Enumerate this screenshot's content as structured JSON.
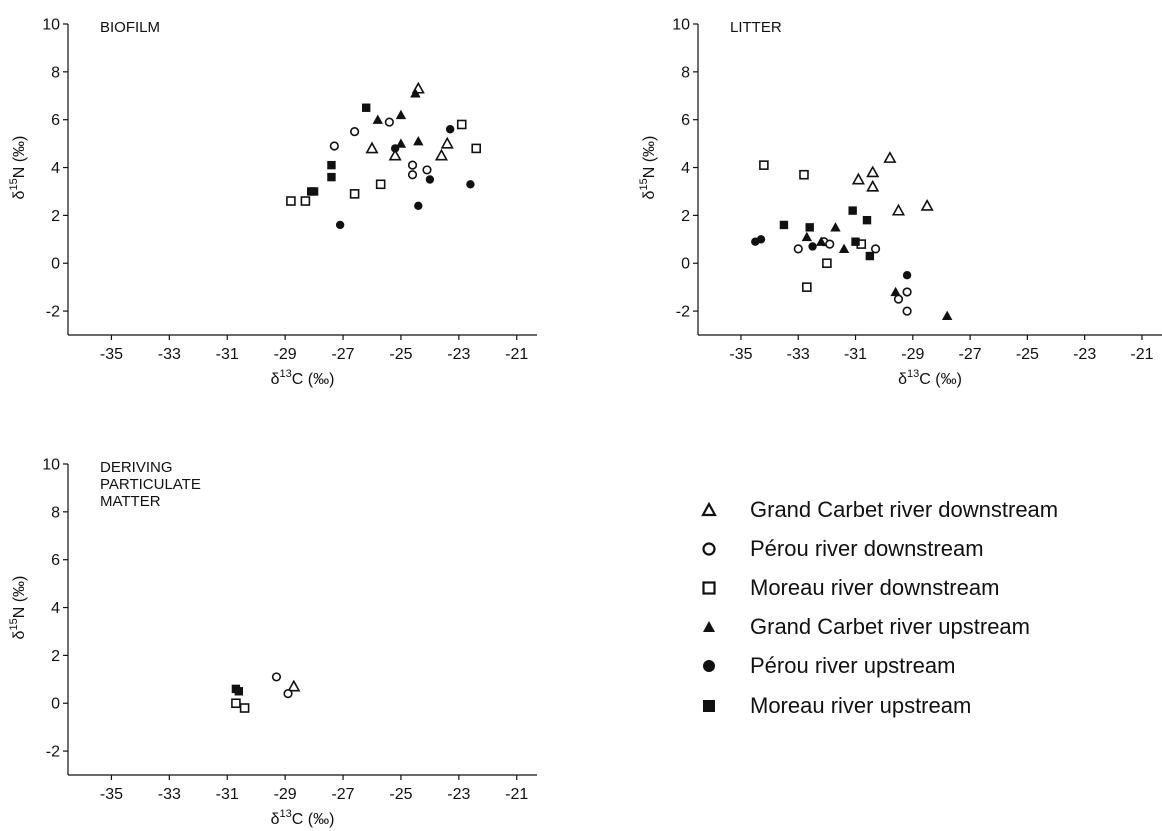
{
  "chart_data": [
    {
      "type": "scatter",
      "title": "BIOFILM",
      "xlabel": {
        "pre": "δ",
        "sup": "13",
        "post": "C (‰)"
      },
      "ylabel": {
        "pre": "δ",
        "sup": "15",
        "post": "N (‰)"
      },
      "xlim": [
        -36.5,
        -20.3
      ],
      "ylim": [
        -3,
        10
      ],
      "xticks": [
        -35,
        -33,
        -31,
        -29,
        -27,
        -25,
        -23,
        -21
      ],
      "yticks": [
        -2,
        0,
        2,
        4,
        6,
        8,
        10
      ],
      "series": [
        {
          "name": "Grand Carbet river downstream",
          "marker": "triangle-open",
          "points": [
            [
              -26.0,
              4.8
            ],
            [
              -25.2,
              4.5
            ],
            [
              -24.4,
              7.3
            ],
            [
              -23.6,
              4.5
            ],
            [
              -23.4,
              5.0
            ]
          ]
        },
        {
          "name": "Pérou river downstream",
          "marker": "circle-open",
          "points": [
            [
              -27.3,
              4.9
            ],
            [
              -26.6,
              5.5
            ],
            [
              -25.4,
              5.9
            ],
            [
              -24.6,
              4.1
            ],
            [
              -24.6,
              3.7
            ],
            [
              -24.1,
              3.9
            ]
          ]
        },
        {
          "name": "Moreau river downstream",
          "marker": "square-open",
          "points": [
            [
              -28.8,
              2.6
            ],
            [
              -28.3,
              2.6
            ],
            [
              -26.6,
              2.9
            ],
            [
              -25.7,
              3.3
            ],
            [
              -22.9,
              5.8
            ],
            [
              -22.4,
              4.8
            ]
          ]
        },
        {
          "name": "Grand Carbet river upstream",
          "marker": "triangle-filled",
          "points": [
            [
              -25.8,
              6.0
            ],
            [
              -25.0,
              6.2
            ],
            [
              -25.0,
              5.0
            ],
            [
              -24.5,
              7.1
            ],
            [
              -24.4,
              5.1
            ]
          ]
        },
        {
          "name": "Pérou river upstream",
          "marker": "circle-filled",
          "points": [
            [
              -27.1,
              1.6
            ],
            [
              -25.2,
              4.8
            ],
            [
              -24.4,
              2.4
            ],
            [
              -24.0,
              3.5
            ],
            [
              -23.3,
              5.6
            ],
            [
              -22.6,
              3.3
            ]
          ]
        },
        {
          "name": "Moreau river upstream",
          "marker": "square-filled",
          "points": [
            [
              -28.1,
              3.0
            ],
            [
              -28.0,
              3.0
            ],
            [
              -27.4,
              4.1
            ],
            [
              -27.4,
              3.6
            ],
            [
              -26.2,
              6.5
            ]
          ]
        }
      ]
    },
    {
      "type": "scatter",
      "title": "LITTER",
      "xlabel": {
        "pre": "δ",
        "sup": "13",
        "post": "C (‰)"
      },
      "ylabel": {
        "pre": "δ",
        "sup": "15",
        "post": "N (‰)"
      },
      "xlim": [
        -36.5,
        -20.3
      ],
      "ylim": [
        -3,
        10
      ],
      "xticks": [
        -35,
        -33,
        -31,
        -29,
        -27,
        -25,
        -23,
        -21
      ],
      "yticks": [
        -2,
        0,
        2,
        4,
        6,
        8,
        10
      ],
      "series": [
        {
          "name": "Grand Carbet river downstream",
          "marker": "triangle-open",
          "points": [
            [
              -30.9,
              3.5
            ],
            [
              -30.4,
              3.2
            ],
            [
              -30.4,
              3.8
            ],
            [
              -29.8,
              4.4
            ],
            [
              -29.5,
              2.2
            ],
            [
              -28.5,
              2.4
            ]
          ]
        },
        {
          "name": "Pérou river downstream",
          "marker": "circle-open",
          "points": [
            [
              -33.0,
              0.6
            ],
            [
              -32.1,
              0.9
            ],
            [
              -31.9,
              0.8
            ],
            [
              -30.3,
              0.6
            ],
            [
              -29.5,
              -1.5
            ],
            [
              -29.2,
              -1.2
            ],
            [
              -29.2,
              -2.0
            ]
          ]
        },
        {
          "name": "Moreau river downstream",
          "marker": "square-open",
          "points": [
            [
              -34.2,
              4.1
            ],
            [
              -32.8,
              3.7
            ],
            [
              -32.7,
              -1.0
            ],
            [
              -32.0,
              0.0
            ],
            [
              -30.8,
              0.8
            ]
          ]
        },
        {
          "name": "Grand Carbet river upstream",
          "marker": "triangle-filled",
          "points": [
            [
              -32.7,
              1.1
            ],
            [
              -32.2,
              0.9
            ],
            [
              -31.7,
              1.5
            ],
            [
              -31.4,
              0.6
            ],
            [
              -29.6,
              -1.2
            ],
            [
              -27.8,
              -2.2
            ]
          ]
        },
        {
          "name": "Pérou river upstream",
          "marker": "circle-filled",
          "points": [
            [
              -34.5,
              0.9
            ],
            [
              -34.3,
              1.0
            ],
            [
              -32.5,
              0.7
            ],
            [
              -29.2,
              -0.5
            ]
          ]
        },
        {
          "name": "Moreau river upstream",
          "marker": "square-filled",
          "points": [
            [
              -33.5,
              1.6
            ],
            [
              -32.6,
              1.5
            ],
            [
              -31.1,
              2.2
            ],
            [
              -31.0,
              0.9
            ],
            [
              -30.6,
              1.8
            ],
            [
              -30.5,
              0.3
            ]
          ]
        }
      ]
    },
    {
      "type": "scatter",
      "title": "DERIVING\nPARTICULATE\nMATTER",
      "xlabel": {
        "pre": "δ",
        "sup": "13",
        "post": "C (‰)"
      },
      "ylabel": {
        "pre": "δ",
        "sup": "15",
        "post": "N (‰)"
      },
      "xlim": [
        -36.5,
        -20.3
      ],
      "ylim": [
        -3,
        10
      ],
      "xticks": [
        -35,
        -33,
        -31,
        -29,
        -27,
        -25,
        -23,
        -21
      ],
      "yticks": [
        -2,
        0,
        2,
        4,
        6,
        8,
        10
      ],
      "series": [
        {
          "name": "Grand Carbet river downstream",
          "marker": "triangle-open",
          "points": [
            [
              -28.7,
              0.7
            ]
          ]
        },
        {
          "name": "Pérou river downstream",
          "marker": "circle-open",
          "points": [
            [
              -29.3,
              1.1
            ],
            [
              -28.9,
              0.4
            ]
          ]
        },
        {
          "name": "Moreau river downstream",
          "marker": "square-open",
          "points": [
            [
              -30.7,
              0.0
            ],
            [
              -30.4,
              -0.2
            ]
          ]
        },
        {
          "name": "Grand Carbet river upstream",
          "marker": "triangle-filled",
          "points": []
        },
        {
          "name": "Pérou river upstream",
          "marker": "circle-filled",
          "points": []
        },
        {
          "name": "Moreau river upstream",
          "marker": "square-filled",
          "points": [
            [
              -30.7,
              0.6
            ],
            [
              -30.6,
              0.5
            ]
          ]
        }
      ]
    }
  ],
  "legend": {
    "placement": "bottom-right",
    "items": [
      {
        "label": "Grand Carbet river downstream",
        "marker": "triangle-open"
      },
      {
        "label": "Pérou river downstream",
        "marker": "circle-open"
      },
      {
        "label": "Moreau river downstream",
        "marker": "square-open"
      },
      {
        "label": "Grand Carbet river upstream",
        "marker": "triangle-filled"
      },
      {
        "label": "Pérou river upstream",
        "marker": "circle-filled"
      },
      {
        "label": "Moreau river upstream",
        "marker": "square-filled"
      }
    ]
  }
}
